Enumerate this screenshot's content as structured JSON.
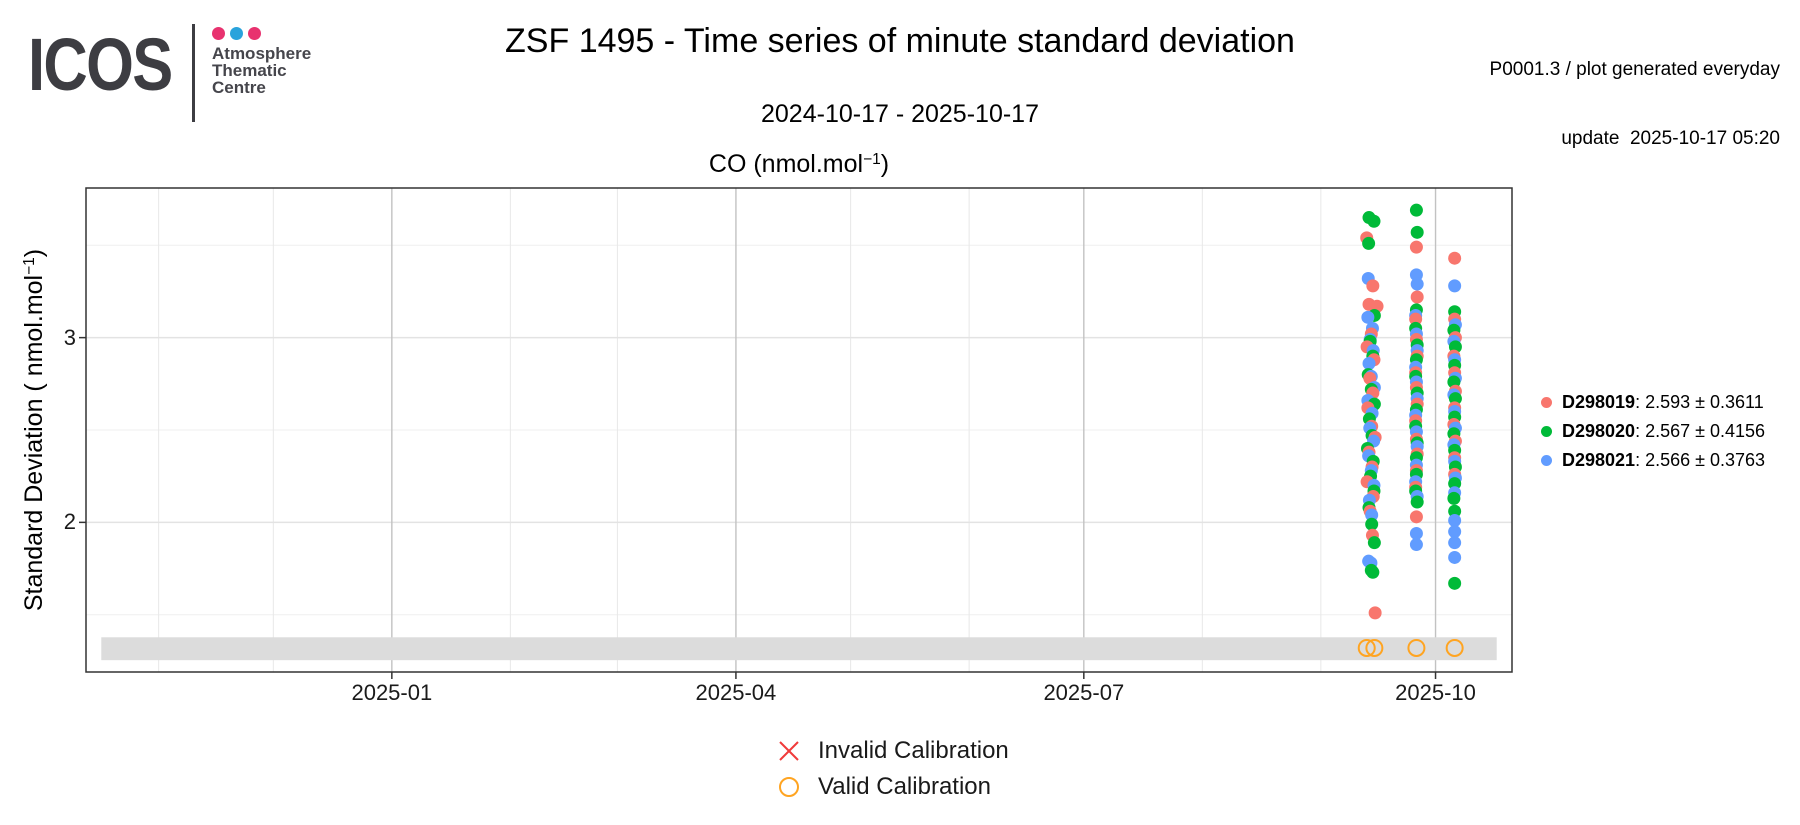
{
  "header": {
    "logo": {
      "wordmark": "ICOS",
      "dot_colors": [
        "#e8326f",
        "#29a3dc",
        "#e8326f"
      ],
      "unit_lines": [
        "Atmosphere",
        "Thematic",
        "Centre"
      ]
    },
    "title": "ZSF 1495 - Time series of minute standard deviation",
    "subtitle": "2024-10-17 - 2025-10-17",
    "update_info_line1": "P0001.3 / plot generated everyday",
    "update_info_line2": "update  2025-10-17 05:20"
  },
  "chart_data": {
    "type": "scatter",
    "title": {
      "prefix": "CO (nmol.mol",
      "sup": "−1",
      "suffix": ")"
    },
    "y_axis": {
      "title_prefix": "Standard Deviation ( nmol.mol",
      "title_sup": "−1",
      "title_suffix": ")",
      "lim": [
        1.19,
        3.81
      ],
      "major_ticks": [
        2,
        3
      ],
      "minor_ticks": [
        1.5,
        2.5,
        3.5
      ]
    },
    "x_axis": {
      "domain": [
        "2024-10-13",
        "2025-10-21"
      ],
      "major_ticks": [
        {
          "date": "2025-01-01",
          "label": "2025-01"
        },
        {
          "date": "2025-04-01",
          "label": "2025-04"
        },
        {
          "date": "2025-07-01",
          "label": "2025-07"
        },
        {
          "date": "2025-10-01",
          "label": "2025-10"
        }
      ],
      "minor_ticks": [
        "2024-11-01",
        "2024-12-01",
        "2025-02-01",
        "2025-03-01",
        "2025-05-01",
        "2025-06-01",
        "2025-08-01",
        "2025-09-01"
      ]
    },
    "grid": {
      "v_major_color": "#c2c2c2",
      "v_minor_color": "#e8e8e8",
      "h_major_color": "#e3e3e3",
      "h_minor_color": "#efefef",
      "border_color": "#333333"
    },
    "point_radius": 6.5,
    "series": [
      {
        "id": "D298019",
        "color": "#F8766D",
        "legend_stats": ": 2.593 ± 0.3611"
      },
      {
        "id": "D298020",
        "color": "#00BA38",
        "legend_stats": ": 2.567 ± 0.4156"
      },
      {
        "id": "D298021",
        "color": "#619CFF",
        "legend_stats": ": 2.566 ± 0.3763"
      }
    ],
    "clusters": [
      {
        "base_date": "2025-09-14",
        "points": {
          "D298019": [
            [
              -1.0,
              3.54
            ],
            [
              0.6,
              3.28
            ],
            [
              -0.4,
              3.18
            ],
            [
              1.7,
              3.17
            ],
            [
              0.2,
              3.02
            ],
            [
              -0.9,
              2.95
            ],
            [
              0.9,
              2.88
            ],
            [
              -0.2,
              2.78
            ],
            [
              0.6,
              2.7
            ],
            [
              -0.7,
              2.62
            ],
            [
              0.3,
              2.52
            ],
            [
              1.2,
              2.46
            ],
            [
              -0.4,
              2.38
            ],
            [
              0.4,
              2.3
            ],
            [
              -0.9,
              2.22
            ],
            [
              0.7,
              2.14
            ],
            [
              -0.1,
              2.06
            ],
            [
              0.5,
              1.93
            ],
            [
              1.2,
              1.51
            ]
          ],
          "D298020": [
            [
              -0.4,
              3.65
            ],
            [
              0.9,
              3.63
            ],
            [
              -0.5,
              3.51
            ],
            [
              1.0,
              3.12
            ],
            [
              -0.1,
              2.98
            ],
            [
              0.6,
              2.9
            ],
            [
              -0.6,
              2.8
            ],
            [
              0.2,
              2.72
            ],
            [
              1.0,
              2.64
            ],
            [
              -0.3,
              2.56
            ],
            [
              0.4,
              2.47
            ],
            [
              -0.8,
              2.4
            ],
            [
              0.7,
              2.33
            ],
            [
              0.0,
              2.25
            ],
            [
              0.9,
              2.17
            ],
            [
              -0.4,
              2.08
            ],
            [
              0.3,
              1.99
            ],
            [
              1.0,
              1.89
            ],
            [
              0.2,
              1.74
            ],
            [
              0.6,
              1.73
            ]
          ],
          "D298021": [
            [
              -0.6,
              3.32
            ],
            [
              -0.7,
              3.11
            ],
            [
              0.5,
              3.05
            ],
            [
              -0.1,
              2.99
            ],
            [
              0.7,
              2.93
            ],
            [
              -0.4,
              2.86
            ],
            [
              0.2,
              2.79
            ],
            [
              1.0,
              2.73
            ],
            [
              -0.7,
              2.66
            ],
            [
              0.4,
              2.59
            ],
            [
              -0.2,
              2.51
            ],
            [
              0.8,
              2.44
            ],
            [
              -0.5,
              2.36
            ],
            [
              0.2,
              2.28
            ],
            [
              0.9,
              2.2
            ],
            [
              -0.3,
              2.12
            ],
            [
              0.3,
              2.04
            ],
            [
              -0.5,
              1.79
            ],
            [
              0.1,
              1.78
            ]
          ]
        }
      },
      {
        "base_date": "2025-09-26",
        "points": {
          "D298019": [
            [
              0,
              3.49
            ],
            [
              0.2,
              3.22
            ],
            [
              -0.2,
              3.1
            ],
            [
              0,
              2.99
            ],
            [
              0.2,
              2.9
            ],
            [
              -0.2,
              2.81
            ],
            [
              0,
              2.73
            ],
            [
              0.2,
              2.64
            ],
            [
              -0.2,
              2.55
            ],
            [
              0,
              2.45
            ],
            [
              0.2,
              2.37
            ],
            [
              0,
              2.28
            ],
            [
              -0.2,
              2.19
            ],
            [
              0,
              2.03
            ]
          ],
          "D298020": [
            [
              0,
              3.69
            ],
            [
              0.2,
              3.57
            ],
            [
              0,
              3.15
            ],
            [
              -0.2,
              3.05
            ],
            [
              0.2,
              2.96
            ],
            [
              0,
              2.88
            ],
            [
              -0.2,
              2.79
            ],
            [
              0.2,
              2.7
            ],
            [
              0,
              2.61
            ],
            [
              -0.2,
              2.52
            ],
            [
              0.2,
              2.43
            ],
            [
              0,
              2.35
            ],
            [
              0,
              2.26
            ],
            [
              -0.2,
              2.17
            ],
            [
              0.2,
              2.11
            ]
          ],
          "D298021": [
            [
              0,
              3.34
            ],
            [
              0.2,
              3.29
            ],
            [
              -0.2,
              3.12
            ],
            [
              0,
              3.02
            ],
            [
              0.2,
              2.93
            ],
            [
              -0.2,
              2.84
            ],
            [
              0,
              2.76
            ],
            [
              0.2,
              2.67
            ],
            [
              -0.2,
              2.58
            ],
            [
              0,
              2.49
            ],
            [
              0.2,
              2.41
            ],
            [
              0,
              2.31
            ],
            [
              -0.2,
              2.22
            ],
            [
              0.2,
              2.14
            ],
            [
              0,
              1.94
            ],
            [
              0,
              1.88
            ]
          ]
        }
      },
      {
        "base_date": "2025-10-06",
        "points": {
          "D298019": [
            [
              0,
              3.43
            ],
            [
              0,
              3.1
            ],
            [
              0.2,
              3.0
            ],
            [
              -0.2,
              2.9
            ],
            [
              0,
              2.81
            ],
            [
              0.2,
              2.71
            ],
            [
              0,
              2.62
            ],
            [
              -0.2,
              2.53
            ],
            [
              0.2,
              2.44
            ],
            [
              0,
              2.35
            ],
            [
              0,
              2.26
            ]
          ],
          "D298020": [
            [
              0,
              3.14
            ],
            [
              -0.2,
              3.04
            ],
            [
              0.2,
              2.95
            ],
            [
              0,
              2.85
            ],
            [
              -0.2,
              2.76
            ],
            [
              0.2,
              2.67
            ],
            [
              0,
              2.57
            ],
            [
              -0.2,
              2.48
            ],
            [
              0,
              2.39
            ],
            [
              0.2,
              2.3
            ],
            [
              0,
              2.21
            ],
            [
              -0.2,
              2.13
            ],
            [
              0,
              2.06
            ],
            [
              0,
              1.67
            ]
          ],
          "D298021": [
            [
              0,
              3.28
            ],
            [
              0.2,
              3.07
            ],
            [
              -0.2,
              2.98
            ],
            [
              0,
              2.88
            ],
            [
              0.2,
              2.78
            ],
            [
              -0.2,
              2.69
            ],
            [
              0,
              2.6
            ],
            [
              0.2,
              2.51
            ],
            [
              -0.2,
              2.42
            ],
            [
              0,
              2.33
            ],
            [
              0.2,
              2.24
            ],
            [
              0,
              2.16
            ],
            [
              0,
              2.01
            ],
            [
              0,
              1.95
            ],
            [
              0,
              1.89
            ],
            [
              0,
              1.81
            ]
          ]
        }
      }
    ],
    "calibration_band": {
      "x_start": "2024-10-17",
      "x_end": "2025-10-17",
      "y_top": 1.378,
      "y_bottom": 1.254,
      "color": "#dcdcdc"
    },
    "valid_calibrations": {
      "dates": [
        "2025-09-13",
        "2025-09-15",
        "2025-09-26",
        "2025-10-06"
      ],
      "y": 1.32,
      "color": "#FFA421",
      "radius": 8
    }
  },
  "calibration_legend": {
    "items": [
      {
        "symbol": "x",
        "color": "#f03b3b",
        "label": "Invalid Calibration"
      },
      {
        "symbol": "circle",
        "color": "#FFA421",
        "label": "Valid Calibration"
      }
    ]
  }
}
